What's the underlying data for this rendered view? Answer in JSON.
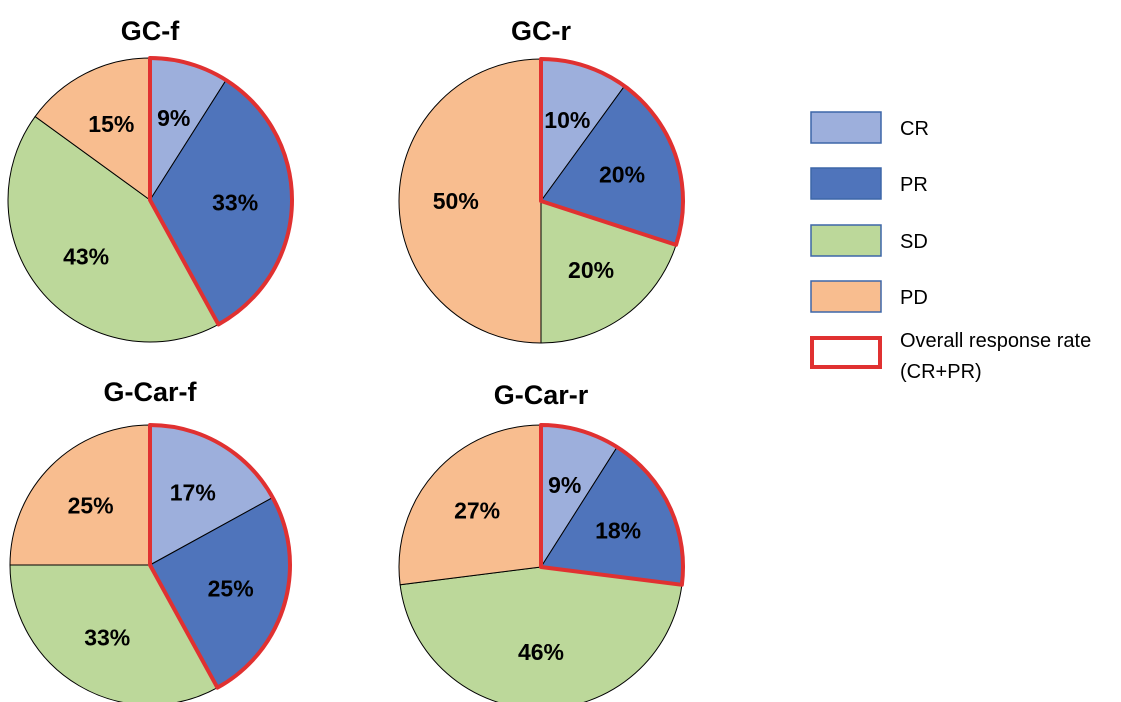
{
  "chart_data": [
    {
      "type": "pie",
      "title": "GC-f",
      "categories": [
        "CR",
        "PR",
        "SD",
        "PD"
      ],
      "values": [
        9,
        33,
        43,
        15
      ],
      "labels": [
        "9%",
        "33%",
        "43%",
        "15%"
      ],
      "highlight": [
        "CR",
        "PR"
      ]
    },
    {
      "type": "pie",
      "title": "GC-r",
      "categories": [
        "CR",
        "PR",
        "SD",
        "PD"
      ],
      "values": [
        10,
        20,
        20,
        50
      ],
      "labels": [
        "10%",
        "20%",
        "20%",
        "50%"
      ],
      "highlight": [
        "CR",
        "PR"
      ]
    },
    {
      "type": "pie",
      "title": "G-Car-f",
      "categories": [
        "CR",
        "PR",
        "SD",
        "PD"
      ],
      "values": [
        17,
        25,
        33,
        25
      ],
      "labels": [
        "17%",
        "25%",
        "33%",
        "25%"
      ],
      "highlight": [
        "CR",
        "PR"
      ]
    },
    {
      "type": "pie",
      "title": "G-Car-r",
      "categories": [
        "CR",
        "PR",
        "SD",
        "PD"
      ],
      "values": [
        9,
        18,
        46,
        27
      ],
      "labels": [
        "9%",
        "18%",
        "46%",
        "27%"
      ],
      "highlight": [
        "CR",
        "PR"
      ]
    }
  ],
  "legend": {
    "placement": "right",
    "items": [
      {
        "key": "CR",
        "label": "CR",
        "color": "#9dafdc"
      },
      {
        "key": "PR",
        "label": "PR",
        "color": "#4f74bb"
      },
      {
        "key": "SD",
        "label": "SD",
        "color": "#bcd89a"
      },
      {
        "key": "PD",
        "label": "PD",
        "color": "#f8bd8f"
      }
    ],
    "overall": {
      "line1": "Overall response rate",
      "line2": "(CR+PR)",
      "color": "#e03131"
    }
  },
  "colors": {
    "CR": "#9dafdc",
    "PR": "#4f74bb",
    "SD": "#bcd89a",
    "PD": "#f8bd8f",
    "highlight": "#e03131"
  }
}
